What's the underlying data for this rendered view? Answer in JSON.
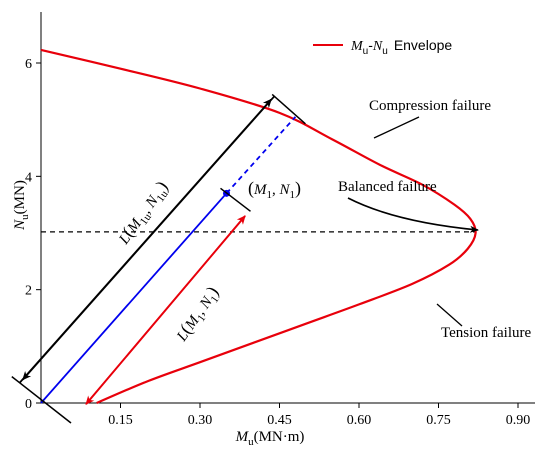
{
  "chart_data": {
    "type": "line",
    "xlim": [
      0,
      0.9
    ],
    "ylim": [
      0,
      6.9
    ],
    "x_ticks": [
      "0.15",
      "0.30",
      "0.45",
      "0.60",
      "0.75",
      "0.90"
    ],
    "y_ticks": [
      "0",
      "2",
      "4",
      "6"
    ],
    "xlabel": {
      "main": "M",
      "sub": "u",
      "unit": "(MN·m)"
    },
    "ylabel": {
      "main": "N",
      "sub": "u",
      "unit": "(MN)"
    },
    "legend": {
      "placement": "top-right",
      "m": "M",
      "m_sub": "u",
      "dash": "-",
      "n": "N",
      "n_sub": "u",
      "suffix": "Envelope"
    },
    "series": [
      {
        "name": "Mu-Nu Envelope",
        "color": "#e8000b",
        "points": [
          [
            0.105,
            0.0
          ],
          [
            0.2,
            0.38
          ],
          [
            0.3,
            0.72
          ],
          [
            0.4,
            1.06
          ],
          [
            0.5,
            1.4
          ],
          [
            0.6,
            1.74
          ],
          [
            0.7,
            2.1
          ],
          [
            0.77,
            2.44
          ],
          [
            0.805,
            2.72
          ],
          [
            0.82,
            3.0
          ],
          [
            0.81,
            3.25
          ],
          [
            0.78,
            3.5
          ],
          [
            0.72,
            3.85
          ],
          [
            0.64,
            4.2
          ],
          [
            0.55,
            4.65
          ],
          [
            0.45,
            5.12
          ],
          [
            0.3,
            5.55
          ],
          [
            0.15,
            5.9
          ],
          [
            0.0,
            6.23
          ]
        ]
      }
    ],
    "balanced_line_y": 3.02,
    "point": {
      "x": 0.35,
      "y": 3.7
    },
    "intersection": {
      "x": 0.48,
      "y": 5.05
    },
    "offset_line": {
      "dx": -0.04,
      "dy": 0.36
    },
    "red_arrow": {
      "from": [
        0.385,
        3.3
      ],
      "to": [
        0.085,
        -0.02
      ]
    },
    "annotations": {
      "compression": "Compression failure",
      "balanced": "Balanced failure",
      "tension": "Tension failure",
      "point_label": {
        "open": "(",
        "m": "M",
        "m_sub": "1",
        "sep": ", ",
        "n": "N",
        "n_sub": "1",
        "close": ")"
      },
      "black_label": {
        "L": "L",
        "open": "(",
        "m": "M",
        "m_sub": "1u",
        "sep": ", ",
        "n": "N",
        "n_sub": "1u",
        "close": ")"
      },
      "red_label": {
        "L": "L",
        "open": "(",
        "m": "M",
        "m_sub": "1",
        "sep": ", ",
        "n": "N",
        "n_sub": "1",
        "close": ")"
      }
    },
    "colors": {
      "envelope": "#e8000b",
      "radial": "#0000ee",
      "arrow_black": "#000000",
      "arrow_red": "#e8000b"
    }
  }
}
